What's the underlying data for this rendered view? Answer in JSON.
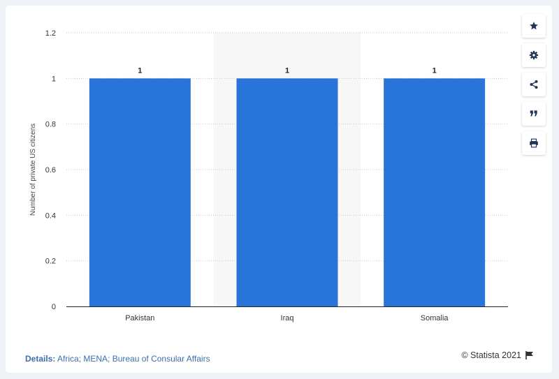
{
  "chart_data": {
    "type": "bar",
    "categories": [
      "Pakistan",
      "Iraq",
      "Somalia"
    ],
    "values": [
      1,
      1,
      1
    ],
    "data_labels": [
      "1",
      "1",
      "1"
    ],
    "ylabel": "Number of private US citizens",
    "xlabel": "",
    "ylim": [
      0,
      1.2
    ],
    "yticks": [
      "0",
      "0.2",
      "0.4",
      "0.6",
      "0.8",
      "1",
      "1.2"
    ],
    "bar_color": "#2874d8",
    "highlight_band_color": "#f7f7f7",
    "grid": true
  },
  "toolbar": {
    "buttons": [
      "star-icon",
      "gear-icon",
      "share-icon",
      "quote-icon",
      "print-icon"
    ]
  },
  "footer": {
    "details_label": "Details:",
    "details_text": "Africa; MENA; Bureau of Consular Affairs",
    "credit": "© Statista 2021"
  },
  "colors": {
    "page_background": "#eef1f5",
    "accent": "#2874d8",
    "details_link": "#3b6fb0"
  }
}
